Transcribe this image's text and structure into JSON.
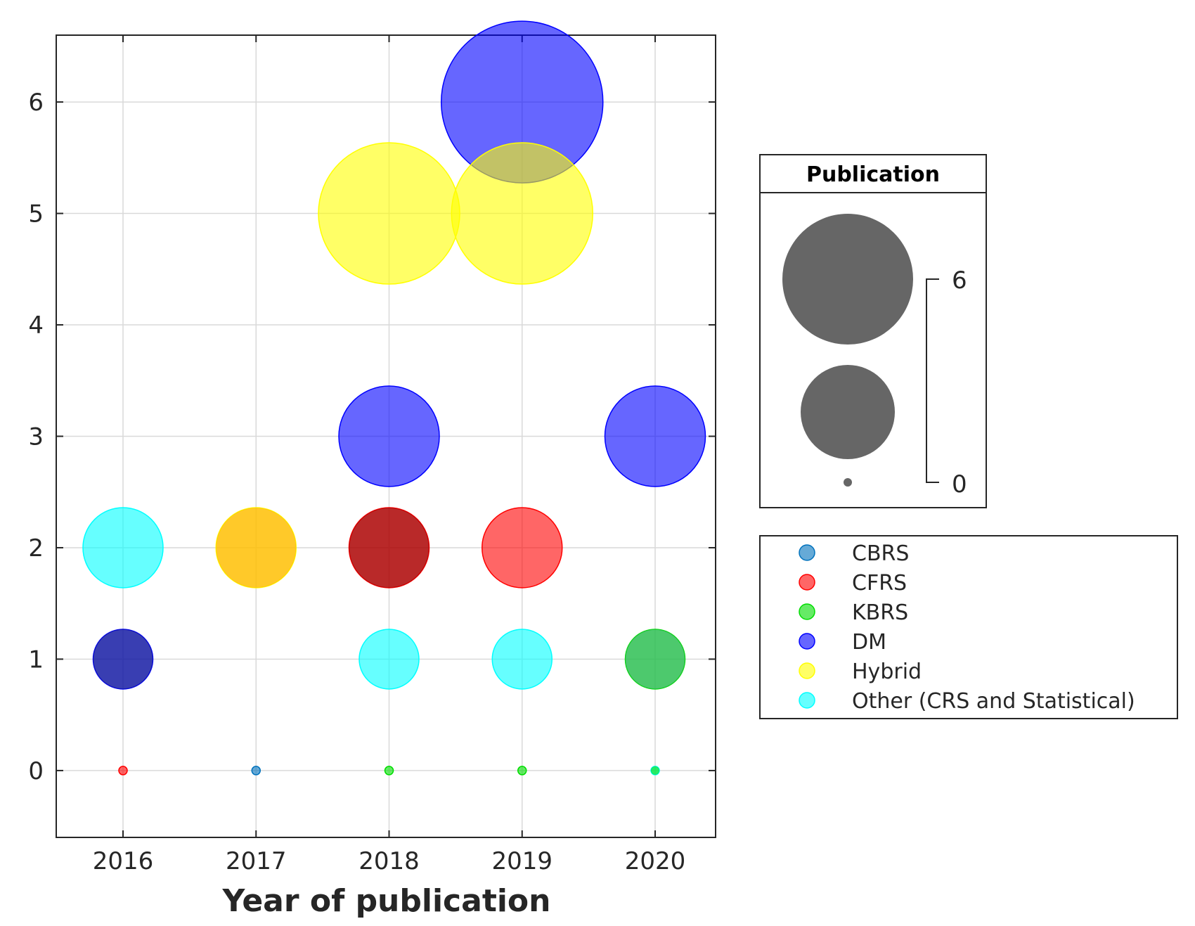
{
  "chart_data": {
    "type": "bubble",
    "xlabel": "Year of publication",
    "ylabel": "",
    "title": "",
    "categories": [
      "2016",
      "2017",
      "2018",
      "2019",
      "2020"
    ],
    "yticks": [
      "0",
      "1",
      "2",
      "3",
      "4",
      "5",
      "6"
    ],
    "ylim": [
      -0.6,
      6.6
    ],
    "grid": true,
    "series": [
      {
        "name": "CBRS",
        "color": "#0072BD",
        "points": [
          {
            "x": "2017",
            "y": 0,
            "size": 0
          }
        ]
      },
      {
        "name": "CFRS",
        "color": "#FF0000",
        "points": [
          {
            "x": "2016",
            "y": 0,
            "size": 0
          },
          {
            "x": "2018",
            "y": 2,
            "size": 2
          },
          {
            "x": "2019",
            "y": 2,
            "size": 2
          }
        ]
      },
      {
        "name": "KBRS",
        "color": "#00DD00",
        "points": [
          {
            "x": "2018",
            "y": 0,
            "size": 0
          },
          {
            "x": "2019",
            "y": 0,
            "size": 0
          },
          {
            "x": "2020",
            "y": 1,
            "size": 1
          }
        ]
      },
      {
        "name": "DM",
        "color": "#0000FF",
        "points": [
          {
            "x": "2016",
            "y": 1,
            "size": 1
          },
          {
            "x": "2018",
            "y": 3,
            "size": 3
          },
          {
            "x": "2019",
            "y": 6,
            "size": 6
          },
          {
            "x": "2020",
            "y": 3,
            "size": 3
          }
        ]
      },
      {
        "name": "Hybrid",
        "color": "#FFFF00",
        "points": [
          {
            "x": "2017",
            "y": 2,
            "size": 2
          },
          {
            "x": "2018",
            "y": 5,
            "size": 5
          },
          {
            "x": "2019",
            "y": 5,
            "size": 5
          }
        ]
      },
      {
        "name": "Other (CRS and Statistical)",
        "color": "#00FFFF",
        "points": [
          {
            "x": "2016",
            "y": 2,
            "size": 2
          },
          {
            "x": "2018",
            "y": 1,
            "size": 1
          },
          {
            "x": "2019",
            "y": 1,
            "size": 1
          },
          {
            "x": "2020",
            "y": 0,
            "size": 0
          }
        ]
      }
    ],
    "overlays": [
      {
        "x": "2016",
        "y": 1,
        "size": 1,
        "color": "#1A237E"
      },
      {
        "x": "2017",
        "y": 2,
        "size": 2,
        "color": "#FFA500"
      },
      {
        "x": "2018",
        "y": 2,
        "size": 2,
        "color": "#8B0000"
      },
      {
        "x": "2020",
        "y": 0,
        "size": 0,
        "color": "#00DD00"
      },
      {
        "x": "2020",
        "y": 1,
        "size": 1,
        "color": "#3CB371"
      }
    ],
    "size_legend": {
      "title": "Publication",
      "max_label": "6",
      "min_label": "0",
      "color": "#666666"
    }
  }
}
